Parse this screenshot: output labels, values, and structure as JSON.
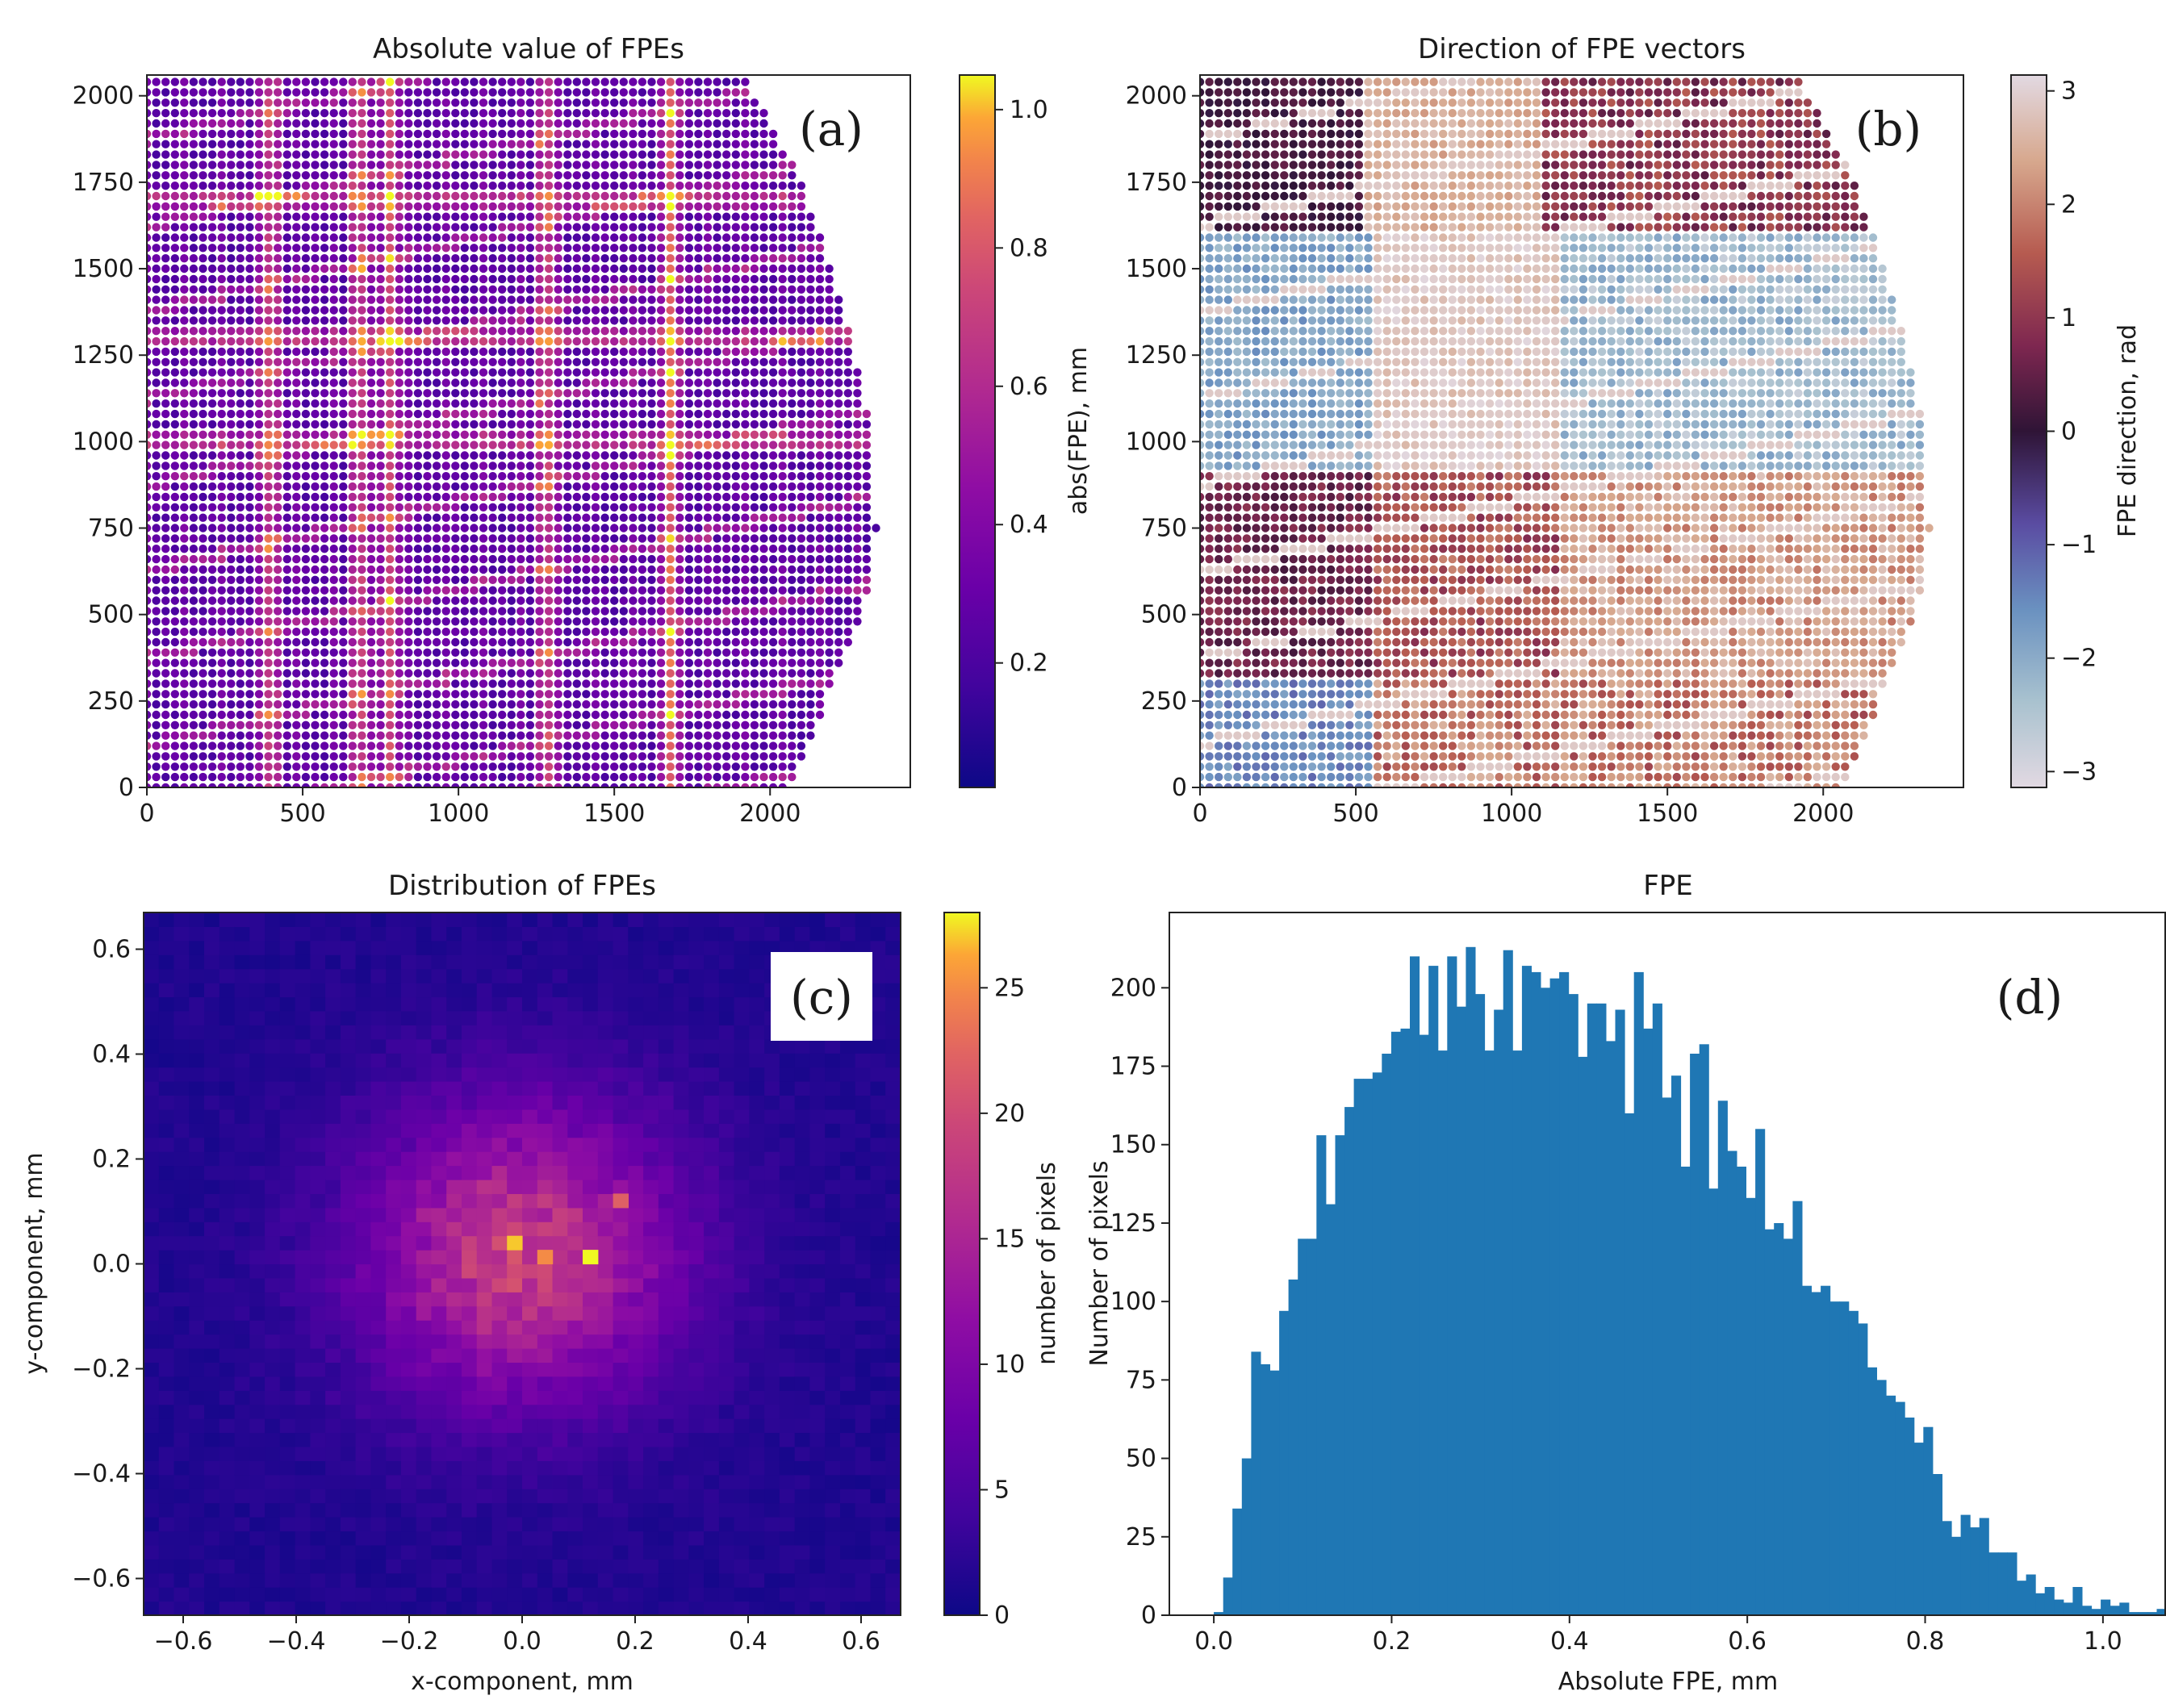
{
  "chart_data": [
    {
      "id": "a",
      "type": "scatter",
      "title": "Absolute value of FPEs",
      "panel_label": "(a)",
      "x_ticks": [
        "0",
        "500",
        "1000",
        "1500",
        "2000"
      ],
      "y_ticks": [
        "0",
        "250",
        "500",
        "750",
        "1000",
        "1250",
        "1500",
        "1750",
        "2000"
      ],
      "xlim": [
        0,
        2450
      ],
      "ylim": [
        0,
        2060
      ],
      "colormap": "plasma",
      "colorbar": {
        "label": "abs(FPE), mm",
        "range": [
          0.02,
          1.05
        ],
        "ticks": [
          "0.2",
          "0.4",
          "0.6",
          "0.8",
          "1.0"
        ],
        "tick_values": [
          0.2,
          0.4,
          0.6,
          0.8,
          1.0
        ]
      },
      "description_values": {
        "grid_spacing": 30,
        "edge_x_at_y": [
          [
            0,
            2060
          ],
          [
            250,
            2180
          ],
          [
            500,
            2300
          ],
          [
            750,
            2340
          ],
          [
            1000,
            2330
          ],
          [
            1250,
            2270
          ],
          [
            1500,
            2200
          ],
          [
            1750,
            2100
          ],
          [
            2060,
            1920
          ]
        ],
        "bright_columns_x": [
          400,
          680,
          780,
          1280,
          1680
        ],
        "bright_rows_y": [
          1000,
          1300,
          1700
        ]
      }
    },
    {
      "id": "b",
      "type": "scatter",
      "title": "Direction of FPE vectors",
      "panel_label": "(b)",
      "x_ticks": [
        "0",
        "500",
        "1000",
        "1500",
        "2000"
      ],
      "y_ticks": [
        "0",
        "250",
        "500",
        "750",
        "1000",
        "1250",
        "1500",
        "1750",
        "2000"
      ],
      "xlim": [
        0,
        2450
      ],
      "ylim": [
        0,
        2060
      ],
      "colormap": "twilight",
      "colorbar": {
        "label": "FPE direction, rad",
        "range": [
          -3.14,
          3.14
        ],
        "ticks": [
          "3",
          "2",
          "1",
          "0",
          "−1",
          "−2",
          "−3"
        ],
        "tick_values": [
          3,
          2,
          1,
          0,
          -1,
          -2,
          -3
        ]
      }
    },
    {
      "id": "c",
      "type": "heatmap",
      "title": "Distribution of FPEs",
      "panel_label": "(c)",
      "xlabel": "x-component, mm",
      "ylabel": "y-component, mm",
      "x_ticks": [
        "−0.6",
        "−0.4",
        "−0.2",
        "0.0",
        "0.2",
        "0.4",
        "0.6"
      ],
      "x_tick_values": [
        -0.6,
        -0.4,
        -0.2,
        0.0,
        0.2,
        0.4,
        0.6
      ],
      "y_ticks": [
        "0.6",
        "0.4",
        "0.2",
        "0.0",
        "−0.2",
        "−0.4",
        "−0.6"
      ],
      "y_tick_values": [
        0.6,
        0.4,
        0.2,
        0.0,
        -0.2,
        -0.4,
        -0.6
      ],
      "xlim": [
        -0.67,
        0.67
      ],
      "ylim": [
        -0.67,
        0.67
      ],
      "bins": 50,
      "peak": {
        "x": 0.0,
        "y": 0.02,
        "count": 27
      },
      "spread_mm": 0.2,
      "colormap": "plasma",
      "colorbar": {
        "label": "number of pixels",
        "range": [
          0,
          28
        ],
        "ticks": [
          "25",
          "20",
          "15",
          "10",
          "5",
          "0"
        ],
        "tick_values": [
          25,
          20,
          15,
          10,
          5,
          0
        ]
      }
    },
    {
      "id": "d",
      "type": "bar",
      "title": "FPE",
      "panel_label": "(d)",
      "xlabel": "Absolute FPE, mm",
      "ylabel": "Number of pixels",
      "x_ticks": [
        "0.0",
        "0.2",
        "0.4",
        "0.6",
        "0.8",
        "1.0"
      ],
      "x_tick_values": [
        0.0,
        0.2,
        0.4,
        0.6,
        0.8,
        1.0
      ],
      "y_ticks": [
        "0",
        "25",
        "50",
        "75",
        "100",
        "125",
        "150",
        "175",
        "200"
      ],
      "y_tick_values": [
        0,
        25,
        50,
        75,
        100,
        125,
        150,
        175,
        200
      ],
      "xlim": [
        -0.05,
        1.07
      ],
      "ylim": [
        0,
        224
      ],
      "bin_start": 0.0,
      "bin_width": 0.0105,
      "color": "#1f77b4",
      "values": [
        1,
        12,
        34,
        50,
        84,
        80,
        78,
        97,
        107,
        120,
        120,
        153,
        131,
        153,
        162,
        171,
        171,
        173,
        179,
        186,
        187,
        210,
        185,
        207,
        180,
        210,
        194,
        213,
        198,
        180,
        193,
        212,
        180,
        207,
        205,
        200,
        203,
        205,
        198,
        178,
        195,
        195,
        183,
        193,
        160,
        205,
        187,
        195,
        165,
        172,
        143,
        179,
        182,
        136,
        164,
        148,
        143,
        133,
        155,
        123,
        125,
        120,
        132,
        105,
        103,
        105,
        100,
        100,
        97,
        93,
        79,
        75,
        70,
        68,
        63,
        55,
        60,
        45,
        30,
        25,
        32,
        28,
        31,
        20,
        20,
        20,
        11,
        13,
        7,
        9,
        5,
        4,
        9,
        3,
        2,
        5,
        3,
        4,
        1,
        1,
        1,
        2,
        1,
        0,
        0,
        0,
        1,
        1,
        0,
        0,
        1,
        0,
        0,
        1,
        0,
        1
      ]
    }
  ]
}
